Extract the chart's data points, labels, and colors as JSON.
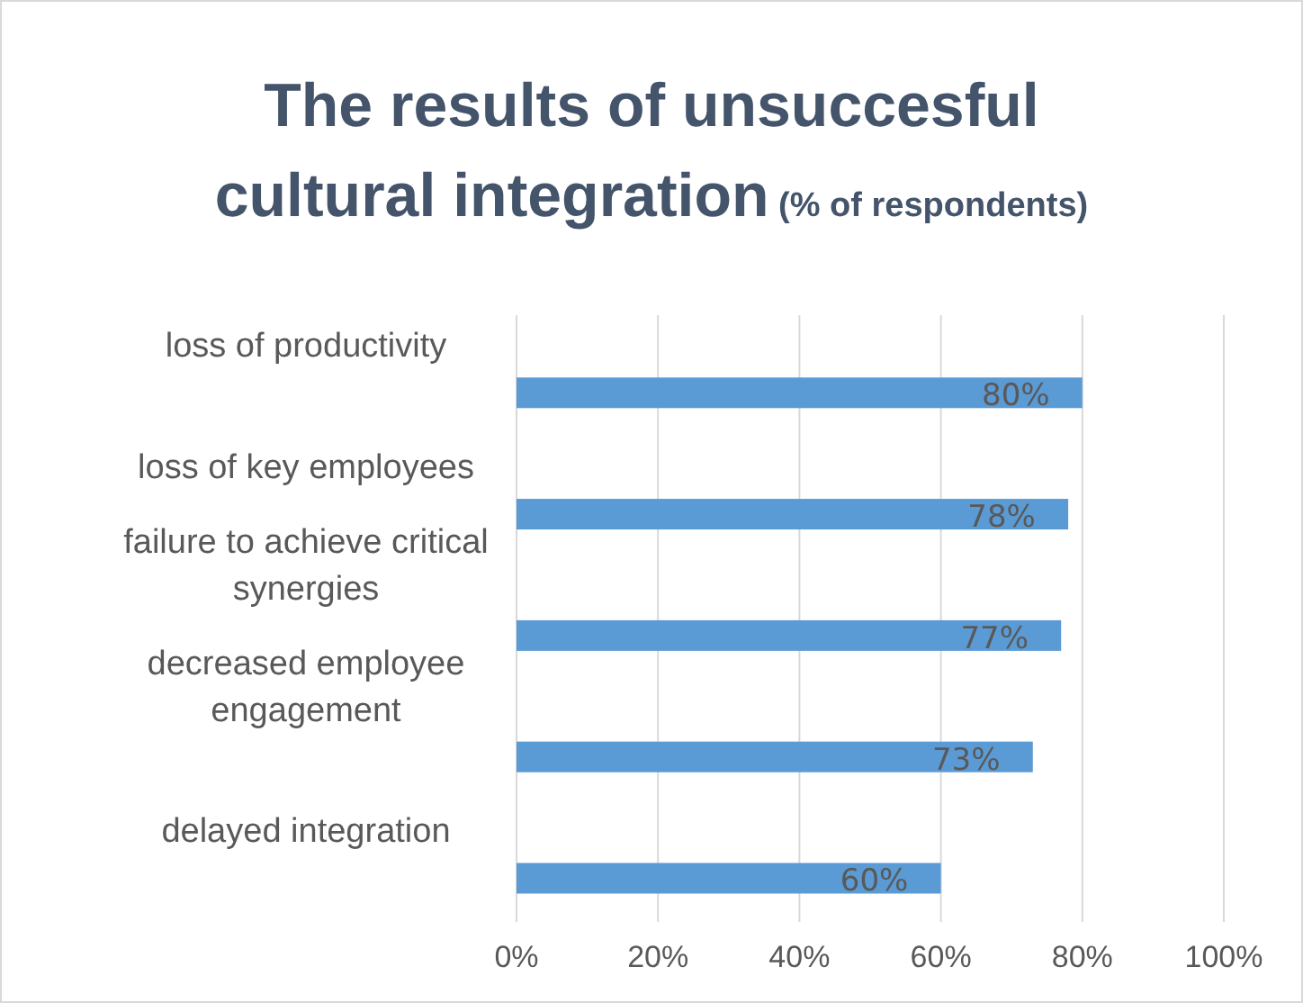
{
  "chart_data": {
    "type": "bar",
    "orientation": "horizontal",
    "title": "The results of unsuccesful cultural integration",
    "subtitle": "(% of respondents)",
    "categories": [
      "loss of productivity",
      "loss of key employees",
      "failure to achieve critical synergies",
      "decreased employee engagement",
      "delayed integration"
    ],
    "values": [
      80,
      78,
      77,
      73,
      60
    ],
    "value_labels": [
      "80%",
      "78%",
      "77%",
      "73%",
      "60%"
    ],
    "color": "#5b9bd5",
    "xlim": [
      0,
      100
    ],
    "xticks": [
      {
        "value": 0,
        "label": "0%"
      },
      {
        "value": 20,
        "label": "20%"
      },
      {
        "value": 40,
        "label": "40%"
      },
      {
        "value": 60,
        "label": "60%"
      },
      {
        "value": 80,
        "label": "80%"
      },
      {
        "value": 100,
        "label": "100%"
      }
    ],
    "grid": "x"
  }
}
